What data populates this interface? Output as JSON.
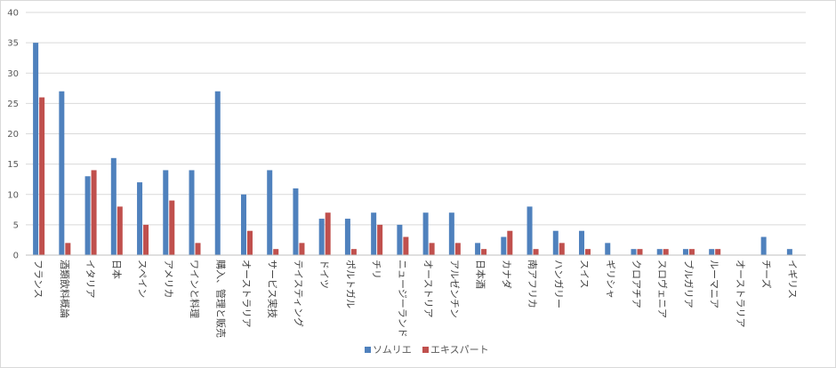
{
  "chart_data": {
    "type": "bar",
    "title": "",
    "xlabel": "",
    "ylabel": "",
    "ylim": [
      0,
      40
    ],
    "yticks": [
      0,
      5,
      10,
      15,
      20,
      25,
      30,
      35,
      40
    ],
    "grid": true,
    "legend_position": "bottom",
    "categories": [
      "フランス",
      "酒類飲料概論",
      "イタリア",
      "日本",
      "スペイン",
      "アメリカ",
      "ワインと料理",
      "購入、管理と販売",
      "オーストラリア",
      "サービス実技",
      "テイスティング",
      "ドイツ",
      "ポルトガル",
      "チリ",
      "ニュージーランド",
      "オーストリア",
      "アルゼンチン",
      "日本酒",
      "カナダ",
      "南アフリカ",
      "ハンガリー",
      "スイス",
      "ギリシャ",
      "クロアチア",
      "スロヴェニア",
      "ブルガリア",
      "ルーマニア",
      "オーストラリア",
      "チーズ",
      "イギリス"
    ],
    "series": [
      {
        "name": "ソムリエ",
        "color": "#4f81bd",
        "values": [
          35,
          27,
          13,
          16,
          12,
          14,
          14,
          27,
          10,
          14,
          11,
          6,
          6,
          7,
          5,
          7,
          7,
          2,
          3,
          8,
          4,
          4,
          2,
          1,
          1,
          1,
          1,
          0,
          3,
          1
        ]
      },
      {
        "name": "エキスパート",
        "color": "#c0504d",
        "values": [
          26,
          2,
          14,
          8,
          5,
          9,
          2,
          0,
          4,
          1,
          2,
          7,
          1,
          5,
          3,
          2,
          2,
          1,
          4,
          1,
          2,
          1,
          0,
          1,
          1,
          1,
          1,
          0,
          0,
          0
        ]
      }
    ]
  }
}
